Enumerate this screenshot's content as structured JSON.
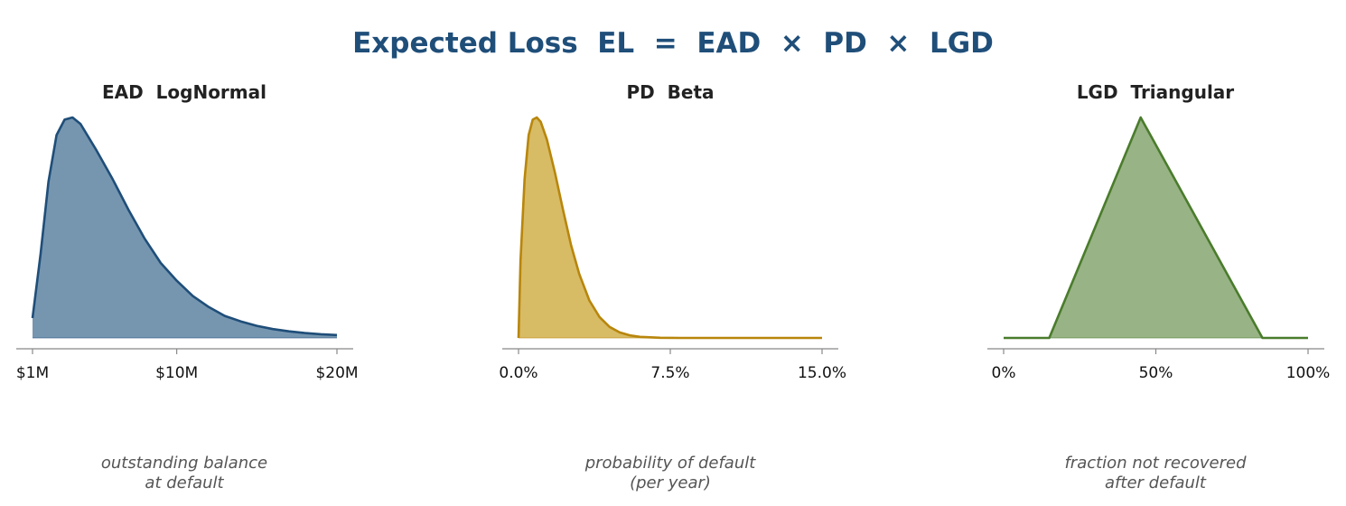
{
  "title": "Expected Loss  EL  =  EAD  ×  PD  ×  LGD",
  "chart_data": [
    {
      "type": "area",
      "title": "EAD  LogNormal",
      "caption": [
        "outstanding balance",
        "at default"
      ],
      "distribution": "lognormal",
      "x_range": [
        1,
        20
      ],
      "x_unit": "$M",
      "ticks": [
        1,
        10,
        20
      ],
      "tick_labels": [
        "$1M",
        "$10M",
        "$20M"
      ],
      "mode": 3.7,
      "points": [
        [
          1.0,
          0.09
        ],
        [
          1.5,
          0.38
        ],
        [
          2.0,
          0.71
        ],
        [
          2.5,
          0.92
        ],
        [
          3.0,
          0.99
        ],
        [
          3.5,
          1.0
        ],
        [
          4.0,
          0.97
        ],
        [
          5.0,
          0.85
        ],
        [
          6.0,
          0.72
        ],
        [
          7.0,
          0.58
        ],
        [
          8.0,
          0.45
        ],
        [
          9.0,
          0.34
        ],
        [
          10.0,
          0.26
        ],
        [
          11.0,
          0.19
        ],
        [
          12.0,
          0.14
        ],
        [
          13.0,
          0.1
        ],
        [
          14.0,
          0.075
        ],
        [
          15.0,
          0.055
        ],
        [
          16.0,
          0.04
        ],
        [
          17.0,
          0.03
        ],
        [
          18.0,
          0.022
        ],
        [
          19.0,
          0.017
        ],
        [
          20.0,
          0.013
        ]
      ],
      "colors": {
        "line": "#1f4e79",
        "fill": "#7696b0"
      }
    },
    {
      "type": "area",
      "title": "PD  Beta",
      "caption": [
        "probability of default",
        "(per year)"
      ],
      "distribution": "beta",
      "x_range": [
        0,
        15
      ],
      "x_unit": "%",
      "ticks": [
        0,
        7.5,
        15
      ],
      "tick_labels": [
        "0.0%",
        "7.5%",
        "15.0%"
      ],
      "mode": 0.9,
      "points": [
        [
          0.0,
          0.0
        ],
        [
          0.1,
          0.35
        ],
        [
          0.3,
          0.72
        ],
        [
          0.5,
          0.92
        ],
        [
          0.7,
          0.99
        ],
        [
          0.9,
          1.0
        ],
        [
          1.1,
          0.98
        ],
        [
          1.4,
          0.9
        ],
        [
          1.8,
          0.75
        ],
        [
          2.2,
          0.58
        ],
        [
          2.6,
          0.42
        ],
        [
          3.0,
          0.29
        ],
        [
          3.5,
          0.17
        ],
        [
          4.0,
          0.095
        ],
        [
          4.5,
          0.05
        ],
        [
          5.0,
          0.025
        ],
        [
          5.5,
          0.012
        ],
        [
          6.0,
          0.005
        ],
        [
          7.0,
          0.001
        ],
        [
          8.0,
          0.0
        ],
        [
          15.0,
          0.0
        ]
      ],
      "colors": {
        "line": "#b8860b",
        "fill": "#d8bb65"
      }
    },
    {
      "type": "area",
      "title": "LGD  Triangular",
      "caption": [
        "fraction not recovered",
        "after default"
      ],
      "distribution": "triangular",
      "x_range": [
        0,
        100
      ],
      "x_unit": "%",
      "ticks": [
        0,
        50,
        100
      ],
      "tick_labels": [
        "0%",
        "50%",
        "100%"
      ],
      "triangle": {
        "min": 15,
        "mode": 45,
        "max": 85
      },
      "points": [
        [
          0,
          0
        ],
        [
          15,
          0
        ],
        [
          45,
          1
        ],
        [
          85,
          0
        ],
        [
          100,
          0
        ]
      ],
      "colors": {
        "line": "#4a7c2c",
        "fill": "#98b385"
      }
    }
  ]
}
